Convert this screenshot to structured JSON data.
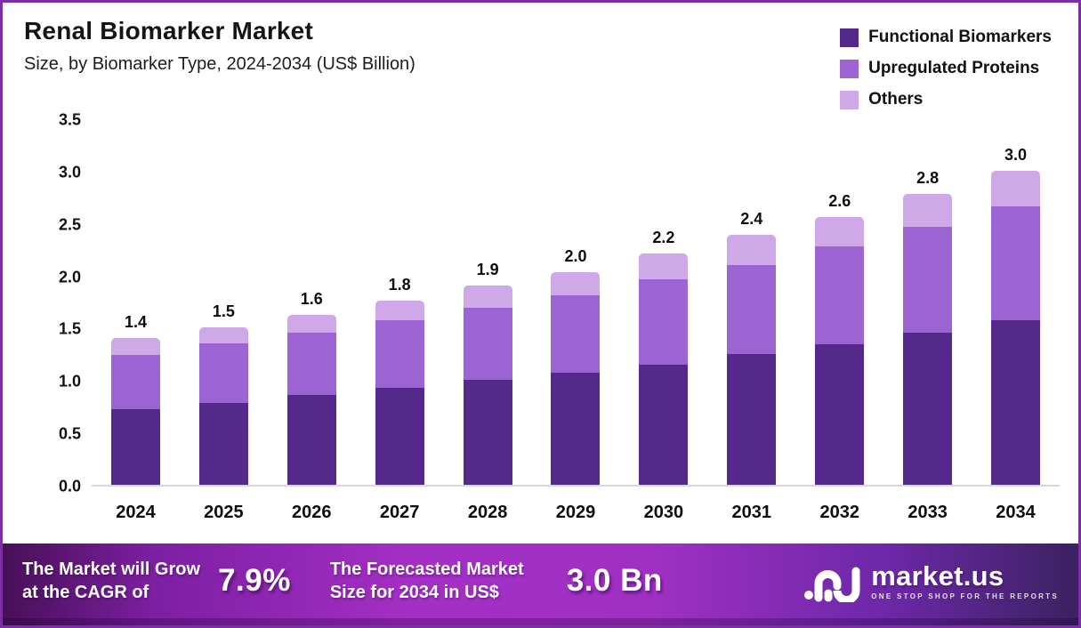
{
  "frame": {
    "border_color": "#7c2fa3",
    "background": "#ffffff"
  },
  "header": {
    "title": "Renal Biomarker Market",
    "subtitle": "Size, by Biomarker Type, 2024-2034 (US$ Billion)"
  },
  "legend": {
    "items": [
      {
        "label": "Functional Biomarkers",
        "color": "#55288C"
      },
      {
        "label": "Upregulated Proteins",
        "color": "#9B64D2"
      },
      {
        "label": "Others",
        "color": "#CFA8E8"
      }
    ]
  },
  "chart_data": {
    "type": "bar",
    "stacked": true,
    "title": "Renal Biomarker Market",
    "subtitle": "Size, by Biomarker Type, 2024-2034 (US$ Billion)",
    "unit": "US$ Billion",
    "categories": [
      "2024",
      "2025",
      "2026",
      "2027",
      "2028",
      "2029",
      "2030",
      "2031",
      "2032",
      "2033",
      "2034"
    ],
    "series": [
      {
        "name": "Functional Biomarkers",
        "color": "#55288C",
        "values": [
          0.72,
          0.78,
          0.86,
          0.93,
          1.0,
          1.07,
          1.15,
          1.25,
          1.34,
          1.45,
          1.57
        ]
      },
      {
        "name": "Upregulated Proteins",
        "color": "#9B64D2",
        "values": [
          0.52,
          0.57,
          0.59,
          0.64,
          0.69,
          0.74,
          0.81,
          0.85,
          0.94,
          1.01,
          1.09
        ]
      },
      {
        "name": "Others",
        "color": "#CFA8E8",
        "values": [
          0.16,
          0.15,
          0.17,
          0.19,
          0.21,
          0.22,
          0.25,
          0.29,
          0.28,
          0.32,
          0.34
        ]
      }
    ],
    "total_labels": [
      "1.4",
      "1.5",
      "1.6",
      "1.8",
      "1.9",
      "2.0",
      "2.2",
      "2.4",
      "2.6",
      "2.8",
      "3.0"
    ],
    "xlabel": "",
    "ylabel": "",
    "ylim": [
      0,
      3.5
    ],
    "y_ticks": [
      "3.5",
      "3.0",
      "2.5",
      "2.0",
      "1.5",
      "1.0",
      "0.5",
      "0.0"
    ],
    "grid": false,
    "legend_position": "top-right"
  },
  "footer": {
    "cagr_label_line1": "The Market will Grow",
    "cagr_label_line2": "at the CAGR of",
    "cagr_value": "7.9%",
    "forecast_label_line1": "The Forecasted Market",
    "forecast_label_line2": "Size for 2034 in US$",
    "forecast_value": "3.0 Bn",
    "brand": {
      "name": "market.us",
      "tagline": "ONE STOP SHOP FOR THE REPORTS"
    }
  }
}
